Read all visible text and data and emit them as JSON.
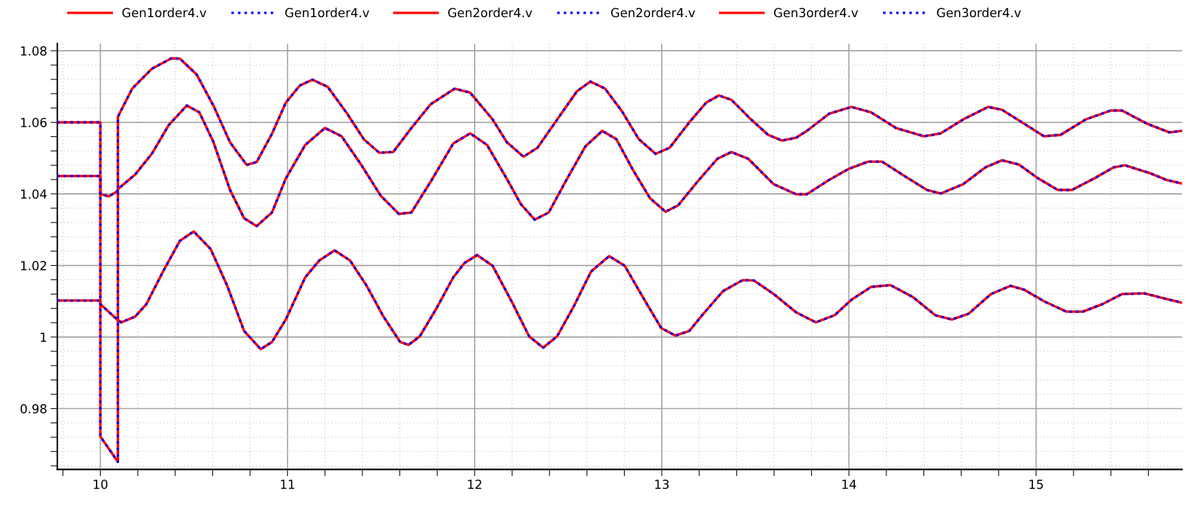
{
  "chart_data": {
    "type": "line",
    "legend": "top",
    "grid": true,
    "marker": "none",
    "xlim": [
      9.77,
      15.78
    ],
    "ylim": [
      0.963,
      1.082
    ],
    "xticks": [
      {
        "value": 9.8,
        "label": null
      },
      10,
      {
        "value": 10.2,
        "label": null
      },
      {
        "value": 10.4,
        "label": null
      },
      {
        "value": 10.6,
        "label": null
      },
      {
        "value": 10.8,
        "label": null
      },
      11,
      {
        "value": 11.2,
        "label": null
      },
      {
        "value": 11.4,
        "label": null
      },
      {
        "value": 11.6,
        "label": null
      },
      {
        "value": 11.8,
        "label": null
      },
      12,
      {
        "value": 12.2,
        "label": null
      },
      {
        "value": 12.4,
        "label": null
      },
      {
        "value": 12.6,
        "label": null
      },
      {
        "value": 12.8,
        "label": null
      },
      13,
      {
        "value": 13.2,
        "label": null
      },
      {
        "value": 13.4,
        "label": null
      },
      {
        "value": 13.6,
        "label": null
      },
      {
        "value": 13.8,
        "label": null
      },
      14,
      {
        "value": 14.2,
        "label": null
      },
      {
        "value": 14.4,
        "label": null
      },
      {
        "value": 14.6,
        "label": null
      },
      {
        "value": 14.8,
        "label": null
      },
      15,
      {
        "value": 15.2,
        "label": null
      },
      {
        "value": 15.4,
        "label": null
      },
      {
        "value": 15.6,
        "label": null
      }
    ],
    "yticks": [
      {
        "value": 0.964,
        "label": null
      },
      {
        "value": 0.968,
        "label": null
      },
      {
        "value": 0.972,
        "label": null
      },
      {
        "value": 0.976,
        "label": null
      },
      0.98,
      {
        "value": 0.984,
        "label": null
      },
      {
        "value": 0.988,
        "label": null
      },
      {
        "value": 0.992,
        "label": null
      },
      {
        "value": 0.996,
        "label": null
      },
      1,
      {
        "value": 1.004,
        "label": null
      },
      {
        "value": 1.008,
        "label": null
      },
      {
        "value": 1.012,
        "label": null
      },
      {
        "value": 1.016,
        "label": null
      },
      1.02,
      {
        "value": 1.024,
        "label": null
      },
      {
        "value": 1.028,
        "label": null
      },
      {
        "value": 1.032,
        "label": null
      },
      {
        "value": 1.036,
        "label": null
      },
      1.04,
      {
        "value": 1.044,
        "label": null
      },
      {
        "value": 1.048,
        "label": null
      },
      {
        "value": 1.052,
        "label": null
      },
      {
        "value": 1.056,
        "label": null
      },
      1.06,
      {
        "value": 1.064,
        "label": null
      },
      {
        "value": 1.068,
        "label": null
      },
      {
        "value": 1.072,
        "label": null
      },
      {
        "value": 1.076,
        "label": null
      },
      1.08
    ],
    "series": [
      {
        "name": "Gen1order4.v",
        "color": "#ff0000",
        "line_style": "solid",
        "x": [
          9.77,
          10.0,
          10.0,
          10.094,
          10.094,
          10.171,
          10.276,
          10.38,
          10.425,
          10.514,
          10.604,
          10.693,
          10.782,
          10.835,
          10.917,
          10.991,
          11.066,
          11.133,
          11.215,
          11.319,
          11.409,
          11.49,
          11.565,
          11.662,
          11.766,
          11.893,
          11.976,
          12.096,
          12.171,
          12.261,
          12.336,
          12.441,
          12.547,
          12.619,
          12.697,
          12.787,
          12.877,
          12.967,
          13.042,
          13.147,
          13.237,
          13.305,
          13.372,
          13.477,
          13.568,
          13.643,
          13.718,
          13.775,
          13.894,
          14.013,
          14.118,
          14.252,
          14.401,
          14.49,
          14.61,
          14.744,
          14.818,
          14.937,
          15.042,
          15.131,
          15.265,
          15.399,
          15.459,
          15.593,
          15.712,
          15.779
        ],
        "values": [
          1.06,
          1.06,
          0.9722,
          0.9651,
          1.0616,
          1.0695,
          1.075,
          1.0779,
          1.0778,
          1.0734,
          1.0647,
          1.0544,
          1.0481,
          1.0489,
          1.0568,
          1.0655,
          1.0703,
          1.0719,
          1.0699,
          1.0624,
          1.0552,
          1.0515,
          1.0517,
          1.0584,
          1.0651,
          1.0694,
          1.0683,
          1.0608,
          1.0545,
          1.0504,
          1.0529,
          1.0608,
          1.0687,
          1.0714,
          1.0694,
          1.0631,
          1.0553,
          1.0512,
          1.0529,
          1.06,
          1.0655,
          1.0675,
          1.0663,
          1.0608,
          1.0565,
          1.0549,
          1.0557,
          1.0576,
          1.0624,
          1.0643,
          1.0628,
          1.0584,
          1.0561,
          1.0569,
          1.0608,
          1.0643,
          1.0635,
          1.0596,
          1.0561,
          1.0565,
          1.0608,
          1.0633,
          1.0633,
          1.0596,
          1.0572,
          1.0576
        ]
      },
      {
        "name": "Gen1order4.v",
        "color": "#0000ff",
        "line_style": "dotted",
        "x": [
          9.77,
          10.0,
          10.0,
          10.094,
          10.094,
          10.171,
          10.276,
          10.38,
          10.425,
          10.514,
          10.604,
          10.693,
          10.782,
          10.835,
          10.917,
          10.991,
          11.066,
          11.133,
          11.215,
          11.319,
          11.409,
          11.49,
          11.565,
          11.662,
          11.766,
          11.893,
          11.976,
          12.096,
          12.171,
          12.261,
          12.336,
          12.441,
          12.547,
          12.619,
          12.697,
          12.787,
          12.877,
          12.967,
          13.042,
          13.147,
          13.237,
          13.305,
          13.372,
          13.477,
          13.568,
          13.643,
          13.718,
          13.775,
          13.894,
          14.013,
          14.118,
          14.252,
          14.401,
          14.49,
          14.61,
          14.744,
          14.818,
          14.937,
          15.042,
          15.131,
          15.265,
          15.399,
          15.459,
          15.593,
          15.712,
          15.779
        ],
        "values": [
          1.06,
          1.06,
          0.9722,
          0.9651,
          1.0616,
          1.0695,
          1.075,
          1.0779,
          1.0778,
          1.0734,
          1.0647,
          1.0544,
          1.0481,
          1.0489,
          1.0568,
          1.0655,
          1.0703,
          1.0719,
          1.0699,
          1.0624,
          1.0552,
          1.0515,
          1.0517,
          1.0584,
          1.0651,
          1.0694,
          1.0683,
          1.0608,
          1.0545,
          1.0504,
          1.0529,
          1.0608,
          1.0687,
          1.0714,
          1.0694,
          1.0631,
          1.0553,
          1.0512,
          1.0529,
          1.06,
          1.0655,
          1.0675,
          1.0663,
          1.0608,
          1.0565,
          1.0549,
          1.0557,
          1.0576,
          1.0624,
          1.0643,
          1.0628,
          1.0584,
          1.0561,
          1.0569,
          1.0608,
          1.0643,
          1.0635,
          1.0596,
          1.0561,
          1.0565,
          1.0608,
          1.0633,
          1.0633,
          1.0596,
          1.0572,
          1.0576
        ]
      },
      {
        "name": "Gen2order4.v",
        "color": "#ff0000",
        "line_style": "solid",
        "x": [
          9.77,
          10.0,
          10.0,
          10.045,
          10.089,
          10.097,
          10.186,
          10.276,
          10.365,
          10.462,
          10.529,
          10.604,
          10.693,
          10.768,
          10.835,
          10.917,
          10.991,
          11.095,
          11.2,
          11.289,
          11.393,
          11.498,
          11.595,
          11.662,
          11.766,
          11.886,
          11.976,
          12.066,
          12.171,
          12.246,
          12.321,
          12.396,
          12.486,
          12.592,
          12.682,
          12.757,
          12.847,
          12.937,
          13.02,
          13.087,
          13.192,
          13.297,
          13.372,
          13.462,
          13.598,
          13.718,
          13.775,
          13.894,
          13.999,
          14.103,
          14.177,
          14.297,
          14.416,
          14.49,
          14.61,
          14.729,
          14.818,
          14.908,
          15.012,
          15.116,
          15.191,
          15.31,
          15.414,
          15.474,
          15.608,
          15.697,
          15.779
        ],
        "values": [
          1.045,
          1.045,
          1.04,
          1.0393,
          1.0407,
          1.0415,
          1.0454,
          1.0513,
          1.0592,
          1.0647,
          1.0628,
          1.0545,
          1.0411,
          1.0332,
          1.031,
          1.0348,
          1.0443,
          1.0537,
          1.0584,
          1.0561,
          1.0482,
          1.0395,
          1.0344,
          1.0348,
          1.0435,
          1.0541,
          1.0569,
          1.0537,
          1.0443,
          1.0372,
          1.0328,
          1.0348,
          1.0435,
          1.0533,
          1.0576,
          1.0553,
          1.0466,
          1.0388,
          1.035,
          1.0368,
          1.0435,
          1.0498,
          1.0517,
          1.0498,
          1.0427,
          1.0399,
          1.0399,
          1.0439,
          1.047,
          1.049,
          1.049,
          1.045,
          1.0411,
          1.0401,
          1.0427,
          1.0474,
          1.0494,
          1.0482,
          1.0443,
          1.0411,
          1.0411,
          1.0443,
          1.0474,
          1.048,
          1.0458,
          1.0439,
          1.0429
        ]
      },
      {
        "name": "Gen2order4.v",
        "color": "#0000ff",
        "line_style": "dotted",
        "x": [
          9.77,
          10.0,
          10.0,
          10.045,
          10.089,
          10.097,
          10.186,
          10.276,
          10.365,
          10.462,
          10.529,
          10.604,
          10.693,
          10.768,
          10.835,
          10.917,
          10.991,
          11.095,
          11.2,
          11.289,
          11.393,
          11.498,
          11.595,
          11.662,
          11.766,
          11.886,
          11.976,
          12.066,
          12.171,
          12.246,
          12.321,
          12.396,
          12.486,
          12.592,
          12.682,
          12.757,
          12.847,
          12.937,
          13.02,
          13.087,
          13.192,
          13.297,
          13.372,
          13.462,
          13.598,
          13.718,
          13.775,
          13.894,
          13.999,
          14.103,
          14.177,
          14.297,
          14.416,
          14.49,
          14.61,
          14.729,
          14.818,
          14.908,
          15.012,
          15.116,
          15.191,
          15.31,
          15.414,
          15.474,
          15.608,
          15.697,
          15.779
        ],
        "values": [
          1.045,
          1.045,
          1.04,
          1.0393,
          1.0407,
          1.0415,
          1.0454,
          1.0513,
          1.0592,
          1.0647,
          1.0628,
          1.0545,
          1.0411,
          1.0332,
          1.031,
          1.0348,
          1.0443,
          1.0537,
          1.0584,
          1.0561,
          1.0482,
          1.0395,
          1.0344,
          1.0348,
          1.0435,
          1.0541,
          1.0569,
          1.0537,
          1.0443,
          1.0372,
          1.0328,
          1.0348,
          1.0435,
          1.0533,
          1.0576,
          1.0553,
          1.0466,
          1.0388,
          1.035,
          1.0368,
          1.0435,
          1.0498,
          1.0517,
          1.0498,
          1.0427,
          1.0399,
          1.0399,
          1.0439,
          1.047,
          1.049,
          1.049,
          1.045,
          1.0411,
          1.0401,
          1.0427,
          1.0474,
          1.0494,
          1.0482,
          1.0443,
          1.0411,
          1.0411,
          1.0443,
          1.0474,
          1.048,
          1.0458,
          1.0439,
          1.0429
        ]
      },
      {
        "name": "Gen3order4.v",
        "color": "#ff0000",
        "line_style": "solid",
        "x": [
          9.77,
          10.0,
          10.0,
          10.089,
          10.112,
          10.186,
          10.246,
          10.335,
          10.425,
          10.499,
          10.589,
          10.678,
          10.768,
          10.857,
          10.917,
          10.991,
          11.095,
          11.17,
          11.252,
          11.334,
          11.423,
          11.513,
          11.602,
          11.647,
          11.707,
          11.796,
          11.886,
          11.946,
          12.014,
          12.096,
          12.201,
          12.291,
          12.366,
          12.441,
          12.532,
          12.622,
          12.719,
          12.802,
          12.907,
          12.997,
          13.072,
          13.147,
          13.222,
          13.327,
          13.432,
          13.492,
          13.598,
          13.718,
          13.823,
          13.924,
          14.013,
          14.118,
          14.222,
          14.341,
          14.461,
          14.55,
          14.639,
          14.759,
          14.863,
          14.937,
          15.042,
          15.161,
          15.25,
          15.355,
          15.459,
          15.578,
          15.682,
          15.779
        ],
        "values": [
          1.0102,
          1.0102,
          1.0092,
          1.0049,
          1.0041,
          1.0057,
          1.0092,
          1.0183,
          1.0269,
          1.0295,
          1.0246,
          1.0143,
          1.0017,
          0.9966,
          0.9986,
          1.0049,
          1.0167,
          1.0214,
          1.0242,
          1.0214,
          1.0143,
          1.0057,
          0.9986,
          0.9978,
          1.0002,
          1.008,
          1.0167,
          1.0207,
          1.0229,
          1.0199,
          1.0096,
          1.0002,
          0.997,
          1.0002,
          1.0088,
          1.0183,
          1.0226,
          1.0199,
          1.0104,
          1.0025,
          1.0004,
          1.0017,
          1.0065,
          1.0128,
          1.0159,
          1.0158,
          1.012,
          1.0069,
          1.0041,
          1.0061,
          1.0104,
          1.014,
          1.0145,
          1.0112,
          1.0061,
          1.0049,
          1.0065,
          1.012,
          1.0143,
          1.0132,
          1.01,
          1.0071,
          1.0071,
          1.0092,
          1.012,
          1.0122,
          1.0108,
          1.0096
        ]
      },
      {
        "name": "Gen3order4.v",
        "color": "#0000ff",
        "line_style": "dotted",
        "x": [
          9.77,
          10.0,
          10.0,
          10.089,
          10.112,
          10.186,
          10.246,
          10.335,
          10.425,
          10.499,
          10.589,
          10.678,
          10.768,
          10.857,
          10.917,
          10.991,
          11.095,
          11.17,
          11.252,
          11.334,
          11.423,
          11.513,
          11.602,
          11.647,
          11.707,
          11.796,
          11.886,
          11.946,
          12.014,
          12.096,
          12.201,
          12.291,
          12.366,
          12.441,
          12.532,
          12.622,
          12.719,
          12.802,
          12.907,
          12.997,
          13.072,
          13.147,
          13.222,
          13.327,
          13.432,
          13.492,
          13.598,
          13.718,
          13.823,
          13.924,
          14.013,
          14.118,
          14.222,
          14.341,
          14.461,
          14.55,
          14.639,
          14.759,
          14.863,
          14.937,
          15.042,
          15.161,
          15.25,
          15.355,
          15.459,
          15.578,
          15.682,
          15.779
        ],
        "values": [
          1.0102,
          1.0102,
          1.0092,
          1.0049,
          1.0041,
          1.0057,
          1.0092,
          1.0183,
          1.0269,
          1.0295,
          1.0246,
          1.0143,
          1.0017,
          0.9966,
          0.9986,
          1.0049,
          1.0167,
          1.0214,
          1.0242,
          1.0214,
          1.0143,
          1.0057,
          0.9986,
          0.9978,
          1.0002,
          1.008,
          1.0167,
          1.0207,
          1.0229,
          1.0199,
          1.0096,
          1.0002,
          0.997,
          1.0002,
          1.0088,
          1.0183,
          1.0226,
          1.0199,
          1.0104,
          1.0025,
          1.0004,
          1.0017,
          1.0065,
          1.0128,
          1.0159,
          1.0158,
          1.012,
          1.0069,
          1.0041,
          1.0061,
          1.0104,
          1.014,
          1.0145,
          1.0112,
          1.0061,
          1.0049,
          1.0065,
          1.012,
          1.0143,
          1.0132,
          1.01,
          1.0071,
          1.0071,
          1.0092,
          1.012,
          1.0122,
          1.0108,
          1.0096
        ]
      }
    ]
  }
}
